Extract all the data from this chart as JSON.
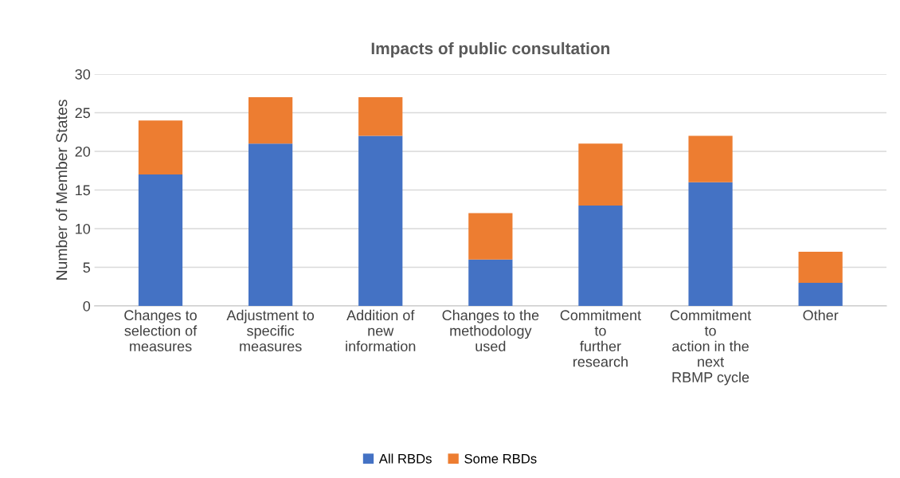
{
  "chart_data": {
    "type": "bar",
    "title": "Impacts of public consultation",
    "ylabel": "Number of Member States",
    "categories": [
      "Changes to\nselection of\nmeasures",
      "Adjustment to\nspecific\nmeasures",
      "Addition of\nnew\ninformation",
      "Changes to the\nmethodology\nused",
      "Commitment\nto\nfurther\nresearch",
      "Commitment\nto\naction in the\nnext\nRBMP cycle",
      "Other"
    ],
    "series": [
      {
        "name": "All RBDs",
        "color": "#4472c4",
        "values": [
          17,
          21,
          22,
          6,
          13,
          16,
          3
        ]
      },
      {
        "name": "Some RBDs",
        "color": "#ed7d31",
        "values": [
          7,
          6,
          5,
          6,
          8,
          6,
          4
        ]
      }
    ],
    "stacked": true,
    "ylim": [
      0,
      30
    ],
    "yticks": [
      0,
      5,
      10,
      15,
      20,
      25,
      30
    ],
    "grid": "y",
    "legend": "bottom"
  }
}
